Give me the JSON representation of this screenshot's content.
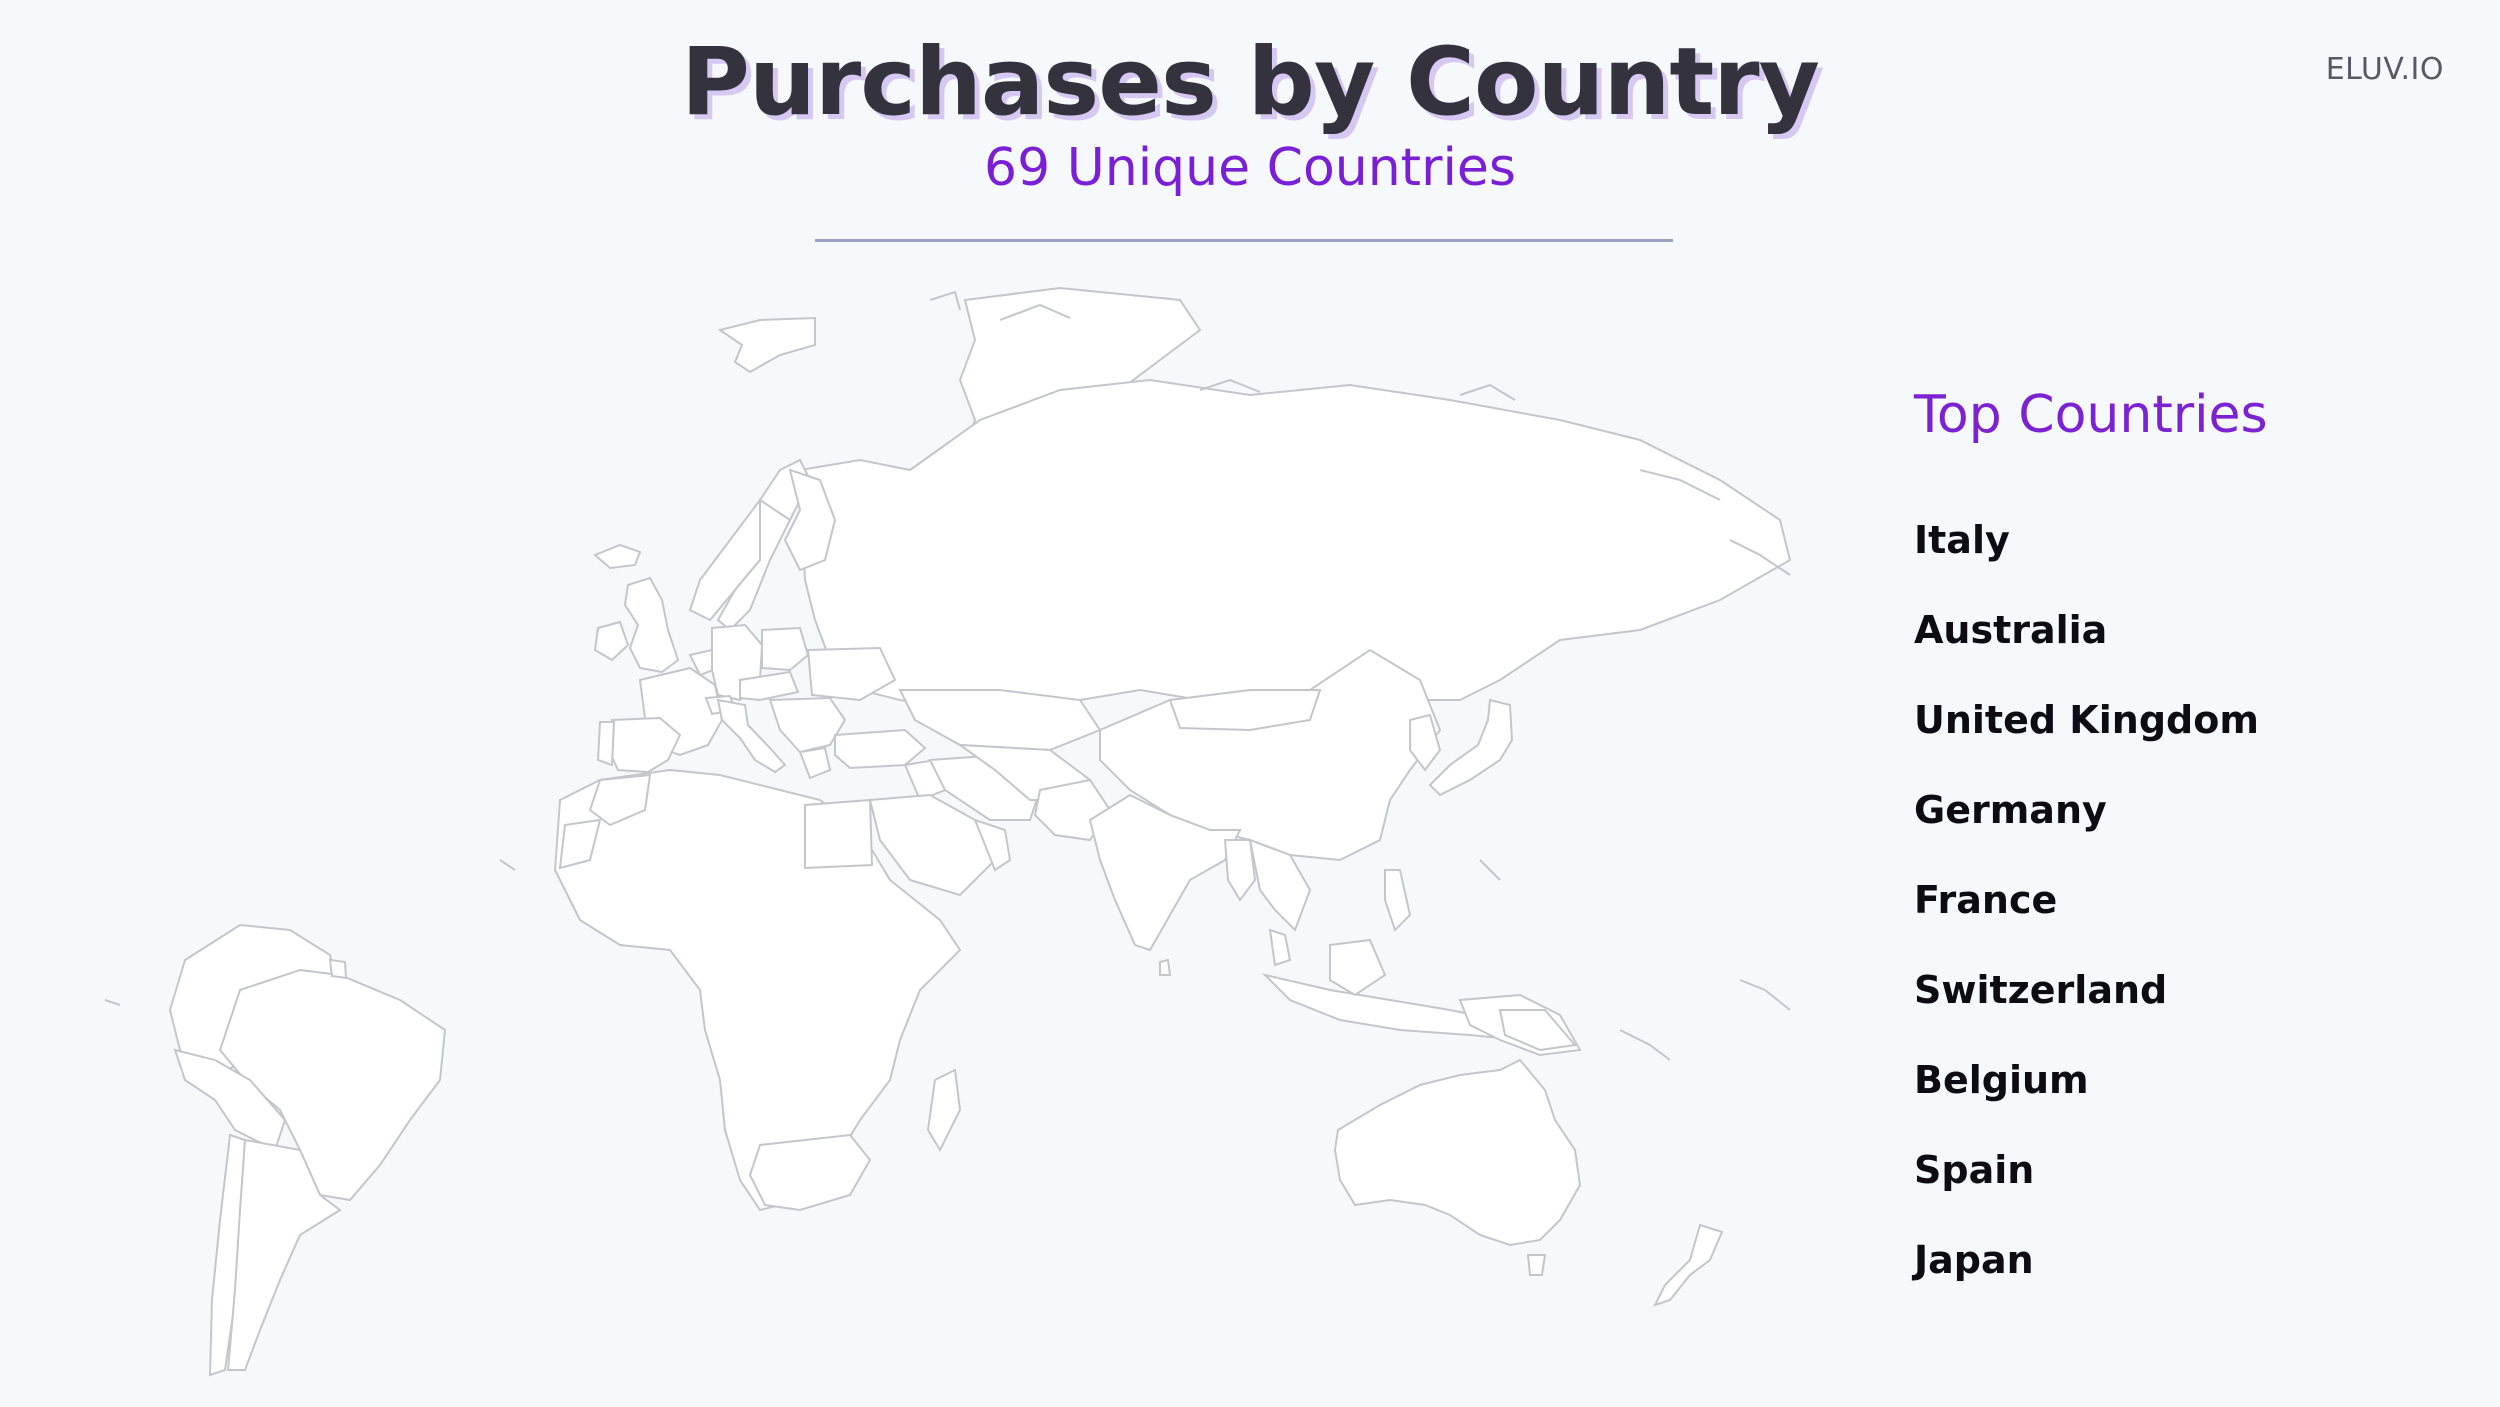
{
  "brand": "ELUV.IO",
  "title": "Purchases by Country",
  "subtitle": "69 Unique Countries",
  "sidebar": {
    "title": "Top Countries",
    "countries": [
      "Italy",
      "Australia",
      "United Kingdom",
      "Germany",
      "France",
      "Switzerland",
      "Belgium",
      "Spain",
      "Japan"
    ]
  },
  "colors": {
    "background": "#f6f9fc",
    "no_purchases": "#ffffff",
    "level_1": "#f0e4fd",
    "level_2": "#d8c0fa",
    "level_3": "#b98cf5",
    "level_4": "#8a40ee",
    "level_5": "#6414e8",
    "level_6": "#4a0bbf"
  }
}
